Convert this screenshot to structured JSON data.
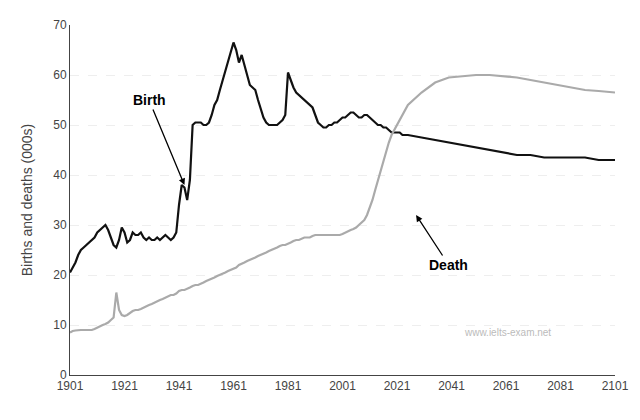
{
  "chart_data": {
    "type": "line",
    "ylabel": "Births and deaths (000s)",
    "xlim": [
      1901,
      2101
    ],
    "ylim": [
      0,
      70
    ],
    "xticks": [
      1901,
      1921,
      1941,
      1961,
      1981,
      2001,
      2021,
      2041,
      2061,
      2081,
      2101
    ],
    "yticks": [
      0,
      10,
      20,
      30,
      40,
      50,
      60,
      70
    ],
    "grid": "y",
    "x": [
      1901,
      1902,
      1903,
      1904,
      1905,
      1906,
      1907,
      1908,
      1909,
      1910,
      1911,
      1912,
      1913,
      1914,
      1915,
      1916,
      1917,
      1918,
      1919,
      1920,
      1921,
      1922,
      1923,
      1924,
      1925,
      1926,
      1927,
      1928,
      1929,
      1930,
      1931,
      1932,
      1933,
      1934,
      1935,
      1936,
      1937,
      1938,
      1939,
      1940,
      1941,
      1942,
      1943,
      1944,
      1945,
      1946,
      1947,
      1948,
      1949,
      1950,
      1951,
      1952,
      1953,
      1954,
      1955,
      1956,
      1957,
      1958,
      1959,
      1960,
      1961,
      1962,
      1963,
      1964,
      1965,
      1966,
      1967,
      1968,
      1969,
      1970,
      1971,
      1972,
      1973,
      1974,
      1975,
      1976,
      1977,
      1978,
      1979,
      1980,
      1981,
      1982,
      1983,
      1984,
      1985,
      1986,
      1987,
      1988,
      1989,
      1990,
      1991,
      1992,
      1993,
      1994,
      1995,
      1996,
      1997,
      1998,
      1999,
      2000,
      2001,
      2002,
      2003,
      2004,
      2005,
      2006,
      2007,
      2008,
      2009,
      2010,
      2011,
      2012,
      2013,
      2014,
      2015,
      2016,
      2017,
      2018,
      2019,
      2020,
      2021,
      2022,
      2023,
      2024,
      2025,
      2030,
      2035,
      2040,
      2045,
      2050,
      2055,
      2060,
      2065,
      2070,
      2075,
      2080,
      2085,
      2090,
      2095,
      2101
    ],
    "series": [
      {
        "color": "#111111",
        "values": [
          20.5,
          21.5,
          22.5,
          24.0,
          25.0,
          25.5,
          26.0,
          26.5,
          27.0,
          27.5,
          28.5,
          29.0,
          29.5,
          30.0,
          29.0,
          27.5,
          26.0,
          25.5,
          27.0,
          29.5,
          28.5,
          26.5,
          27.0,
          28.5,
          28.0,
          28.0,
          28.5,
          27.5,
          27.0,
          27.5,
          27.0,
          27.0,
          27.5,
          27.0,
          27.5,
          28.0,
          27.5,
          27.0,
          27.5,
          28.5,
          34.0,
          38.0,
          37.5,
          35.0,
          39.0,
          50.0,
          50.5,
          50.5,
          50.5,
          50.0,
          50.0,
          50.5,
          52.0,
          54.0,
          55.0,
          57.0,
          59.0,
          61.0,
          63.0,
          64.5,
          66.5,
          65.0,
          62.5,
          64.0,
          62.0,
          59.5,
          58.0,
          57.5,
          57.0,
          55.0,
          53.0,
          51.5,
          50.5,
          50.0,
          50.0,
          50.0,
          50.0,
          50.5,
          51.0,
          52.0,
          60.5,
          59.0,
          57.5,
          56.5,
          56.0,
          55.5,
          55.0,
          54.5,
          54.0,
          53.5,
          52.0,
          50.5,
          50.0,
          49.5,
          49.5,
          50.0,
          50.0,
          50.5,
          50.5,
          51.0,
          51.5,
          51.5,
          52.0,
          52.5,
          52.5,
          52.0,
          51.5,
          51.5,
          52.0,
          52.0,
          51.5,
          51.0,
          50.5,
          50.0,
          50.0,
          49.5,
          49.5,
          49.0,
          48.5,
          48.5,
          48.5,
          48.5,
          48.0,
          48.0,
          48.0,
          47.5,
          47.0,
          46.5,
          46.0,
          45.5,
          45.0,
          44.5,
          44.0,
          44.0,
          43.5,
          43.5,
          43.5,
          43.5,
          43.0,
          43.0
        ]
      },
      {
        "color": "#aaaaaa",
        "values": [
          8.5,
          8.8,
          8.9,
          9.0,
          9.0,
          9.0,
          9.0,
          9.0,
          9.0,
          9.2,
          9.5,
          9.8,
          10.0,
          10.2,
          10.5,
          11.0,
          11.5,
          16.5,
          13.0,
          12.0,
          11.8,
          12.0,
          12.5,
          12.8,
          13.0,
          13.0,
          13.2,
          13.5,
          13.8,
          14.0,
          14.2,
          14.5,
          14.8,
          15.0,
          15.2,
          15.5,
          15.8,
          16.0,
          16.0,
          16.3,
          16.8,
          17.0,
          17.0,
          17.2,
          17.5,
          17.8,
          18.0,
          18.0,
          18.2,
          18.5,
          18.8,
          19.0,
          19.2,
          19.5,
          19.8,
          20.0,
          20.3,
          20.5,
          20.8,
          21.0,
          21.2,
          21.5,
          22.0,
          22.2,
          22.5,
          22.8,
          23.0,
          23.2,
          23.5,
          23.8,
          24.0,
          24.2,
          24.5,
          24.8,
          25.0,
          25.2,
          25.5,
          25.8,
          26.0,
          26.0,
          26.2,
          26.5,
          26.8,
          27.0,
          27.0,
          27.2,
          27.5,
          27.5,
          27.5,
          27.8,
          28.0,
          28.0,
          28.0,
          28.0,
          28.0,
          28.0,
          28.0,
          28.0,
          28.0,
          28.0,
          28.2,
          28.5,
          28.8,
          29.0,
          29.2,
          29.5,
          30.0,
          30.5,
          31.0,
          32.0,
          33.5,
          35.0,
          37.0,
          39.0,
          41.0,
          43.0,
          45.0,
          46.5,
          48.0,
          49.0,
          50.0,
          51.0,
          52.0,
          53.0,
          54.0,
          56.5,
          58.5,
          59.5,
          59.8,
          60.0,
          60.0,
          59.8,
          59.5,
          59.0,
          58.5,
          58.0,
          57.5,
          57.0,
          56.8,
          56.5
        ]
      }
    ],
    "annotations": [
      {
        "text": "Birth",
        "x": 1943,
        "y": 38.0,
        "text_x": 1930,
        "text_y": 55.0
      },
      {
        "text": "Death",
        "x": 2028,
        "y": 32.0,
        "text_x": 2040,
        "text_y": 22.0
      },
      {
        "text": "www.ielts-exam.net"
      }
    ]
  }
}
